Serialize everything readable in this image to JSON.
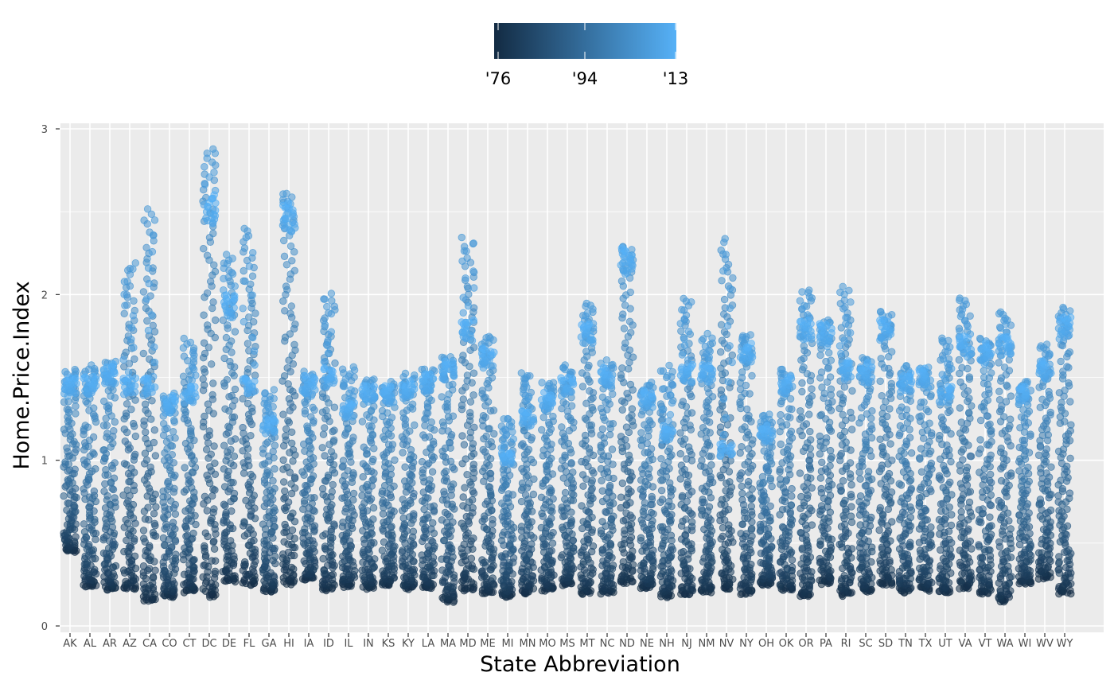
{
  "chart_data": {
    "type": "scatter",
    "title": "",
    "xlabel": "State Abbreviation",
    "ylabel": "Home.Price.Index",
    "ylim": [
      0,
      3
    ],
    "y_ticks": [
      0,
      1,
      2,
      3
    ],
    "y_tick_labels": [
      "0",
      "1",
      "2",
      "3"
    ],
    "grid": true,
    "jitter": true,
    "legend": {
      "type": "colorbar",
      "position": "top",
      "labels": [
        "'76",
        "'94",
        "'13"
      ],
      "low_color": "#132B43",
      "high_color": "#56B1F7",
      "range": [
        1976,
        2013
      ],
      "breaks": [
        1976,
        1994,
        2013
      ]
    },
    "categories": [
      "AK",
      "AL",
      "AR",
      "AZ",
      "CA",
      "CO",
      "CT",
      "DC",
      "DE",
      "FL",
      "GA",
      "HI",
      "IA",
      "ID",
      "IL",
      "IN",
      "KS",
      "KY",
      "LA",
      "MA",
      "MD",
      "ME",
      "MI",
      "MN",
      "MO",
      "MS",
      "MT",
      "NC",
      "ND",
      "NE",
      "NH",
      "NJ",
      "NM",
      "NV",
      "NY",
      "OH",
      "OK",
      "OR",
      "PA",
      "RI",
      "SC",
      "SD",
      "TN",
      "TX",
      "UT",
      "VA",
      "VT",
      "WA",
      "WI",
      "WV",
      "WY"
    ],
    "series_profiles": [
      {
        "state": "AK",
        "start": 0.45,
        "peak": 1.55,
        "end": 1.5
      },
      {
        "state": "AL",
        "start": 0.24,
        "peak": 1.57,
        "end": 1.5
      },
      {
        "state": "AR",
        "start": 0.22,
        "peak": 1.6,
        "end": 1.57
      },
      {
        "state": "AZ",
        "start": 0.22,
        "peak": 2.2,
        "end": 1.5
      },
      {
        "state": "CA",
        "start": 0.15,
        "peak": 2.52,
        "end": 1.5
      },
      {
        "state": "CO",
        "start": 0.18,
        "peak": 1.4,
        "end": 1.38
      },
      {
        "state": "CT",
        "start": 0.21,
        "peak": 1.73,
        "end": 1.45
      },
      {
        "state": "DC",
        "start": 0.18,
        "peak": 2.89,
        "end": 2.6
      },
      {
        "state": "DE",
        "start": 0.27,
        "peak": 2.24,
        "end": 2.0
      },
      {
        "state": "FL",
        "start": 0.25,
        "peak": 2.41,
        "end": 1.5
      },
      {
        "state": "GA",
        "start": 0.21,
        "peak": 1.42,
        "end": 1.25
      },
      {
        "state": "HI",
        "start": 0.26,
        "peak": 2.62,
        "end": 2.55
      },
      {
        "state": "IA",
        "start": 0.28,
        "peak": 1.53,
        "end": 1.5
      },
      {
        "state": "ID",
        "start": 0.22,
        "peak": 2.01,
        "end": 1.55
      },
      {
        "state": "IL",
        "start": 0.24,
        "peak": 1.57,
        "end": 1.35
      },
      {
        "state": "IN",
        "start": 0.23,
        "peak": 1.5,
        "end": 1.45
      },
      {
        "state": "KS",
        "start": 0.25,
        "peak": 1.47,
        "end": 1.45
      },
      {
        "state": "KY",
        "start": 0.23,
        "peak": 1.52,
        "end": 1.47
      },
      {
        "state": "LA",
        "start": 0.23,
        "peak": 1.56,
        "end": 1.52
      },
      {
        "state": "MA",
        "start": 0.15,
        "peak": 1.63,
        "end": 1.6
      },
      {
        "state": "MD",
        "start": 0.22,
        "peak": 2.35,
        "end": 1.85
      },
      {
        "state": "ME",
        "start": 0.2,
        "peak": 1.76,
        "end": 1.68
      },
      {
        "state": "MI",
        "start": 0.18,
        "peak": 1.26,
        "end": 1.05
      },
      {
        "state": "MN",
        "start": 0.2,
        "peak": 1.54,
        "end": 1.3
      },
      {
        "state": "MO",
        "start": 0.22,
        "peak": 1.48,
        "end": 1.4
      },
      {
        "state": "MS",
        "start": 0.25,
        "peak": 1.57,
        "end": 1.5
      },
      {
        "state": "MT",
        "start": 0.2,
        "peak": 1.95,
        "end": 1.83
      },
      {
        "state": "NC",
        "start": 0.2,
        "peak": 1.6,
        "end": 1.55
      },
      {
        "state": "ND",
        "start": 0.26,
        "peak": 2.3,
        "end": 2.28
      },
      {
        "state": "NE",
        "start": 0.23,
        "peak": 1.47,
        "end": 1.42
      },
      {
        "state": "NH",
        "start": 0.18,
        "peak": 1.57,
        "end": 1.2
      },
      {
        "state": "NJ",
        "start": 0.19,
        "peak": 1.98,
        "end": 1.58
      },
      {
        "state": "NM",
        "start": 0.21,
        "peak": 1.76,
        "end": 1.58
      },
      {
        "state": "NV",
        "start": 0.23,
        "peak": 2.34,
        "end": 1.1
      },
      {
        "state": "NY",
        "start": 0.2,
        "peak": 1.77,
        "end": 1.7
      },
      {
        "state": "OH",
        "start": 0.25,
        "peak": 1.28,
        "end": 1.2
      },
      {
        "state": "OK",
        "start": 0.22,
        "peak": 1.55,
        "end": 1.5
      },
      {
        "state": "OR",
        "start": 0.18,
        "peak": 2.04,
        "end": 1.85
      },
      {
        "state": "PA",
        "start": 0.26,
        "peak": 1.85,
        "end": 1.82
      },
      {
        "state": "RI",
        "start": 0.19,
        "peak": 2.05,
        "end": 1.6
      },
      {
        "state": "SC",
        "start": 0.21,
        "peak": 1.62,
        "end": 1.58
      },
      {
        "state": "SD",
        "start": 0.25,
        "peak": 1.9,
        "end": 1.85
      },
      {
        "state": "TN",
        "start": 0.21,
        "peak": 1.57,
        "end": 1.52
      },
      {
        "state": "TX",
        "start": 0.22,
        "peak": 1.56,
        "end": 1.55
      },
      {
        "state": "UT",
        "start": 0.2,
        "peak": 1.75,
        "end": 1.45
      },
      {
        "state": "VA",
        "start": 0.23,
        "peak": 1.99,
        "end": 1.75
      },
      {
        "state": "VT",
        "start": 0.2,
        "peak": 1.74,
        "end": 1.7
      },
      {
        "state": "WA",
        "start": 0.15,
        "peak": 1.9,
        "end": 1.75
      },
      {
        "state": "WI",
        "start": 0.26,
        "peak": 1.48,
        "end": 1.45
      },
      {
        "state": "WV",
        "start": 0.29,
        "peak": 1.7,
        "end": 1.6
      },
      {
        "state": "WY",
        "start": 0.2,
        "peak": 1.92,
        "end": 1.87
      }
    ]
  }
}
